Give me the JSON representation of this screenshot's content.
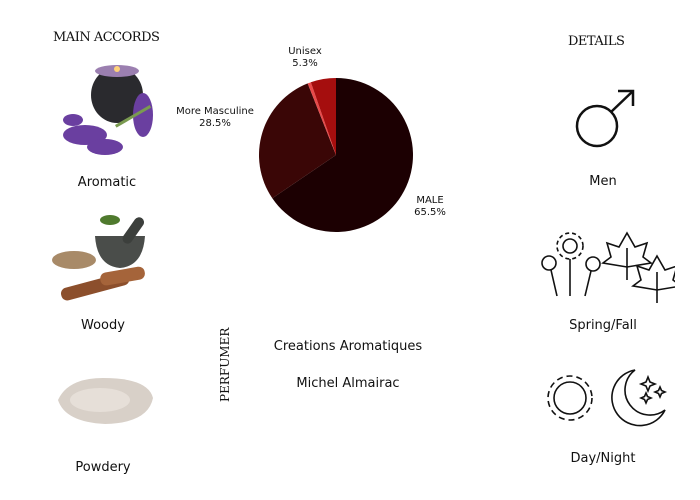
{
  "accords": {
    "title": "MAIN ACCORDS",
    "items": [
      {
        "label": "Aromatic",
        "icon": "candle-lavender-icon"
      },
      {
        "label": "Woody",
        "icon": "mortar-wood-icon"
      },
      {
        "label": "Powdery",
        "icon": "powder-icon"
      }
    ]
  },
  "details": {
    "title": "DETAILS",
    "items": [
      {
        "label": "Men",
        "icon": "male-symbol-icon"
      },
      {
        "label": "Spring/Fall",
        "icon": "flowers-leaves-icon"
      },
      {
        "label": "Day/Night",
        "icon": "sun-moon-icon"
      }
    ]
  },
  "perfumer": {
    "title": "PERFUMER",
    "house": "Creations Aromatiques",
    "name": "Michel Almairac"
  },
  "chart_data": {
    "type": "pie",
    "slices": [
      {
        "label": "MALE",
        "value": 65.5,
        "value_label": "65.5%",
        "color": "#1c0002"
      },
      {
        "label": "More Masculine",
        "value": 28.5,
        "value_label": "28.5%",
        "color": "#3a0606"
      },
      {
        "label": "",
        "value": 0.7,
        "value_label": "",
        "color": "#e84a4a"
      },
      {
        "label": "Unisex",
        "value": 5.3,
        "value_label": "5.3%",
        "color": "#a50e0e"
      }
    ]
  }
}
